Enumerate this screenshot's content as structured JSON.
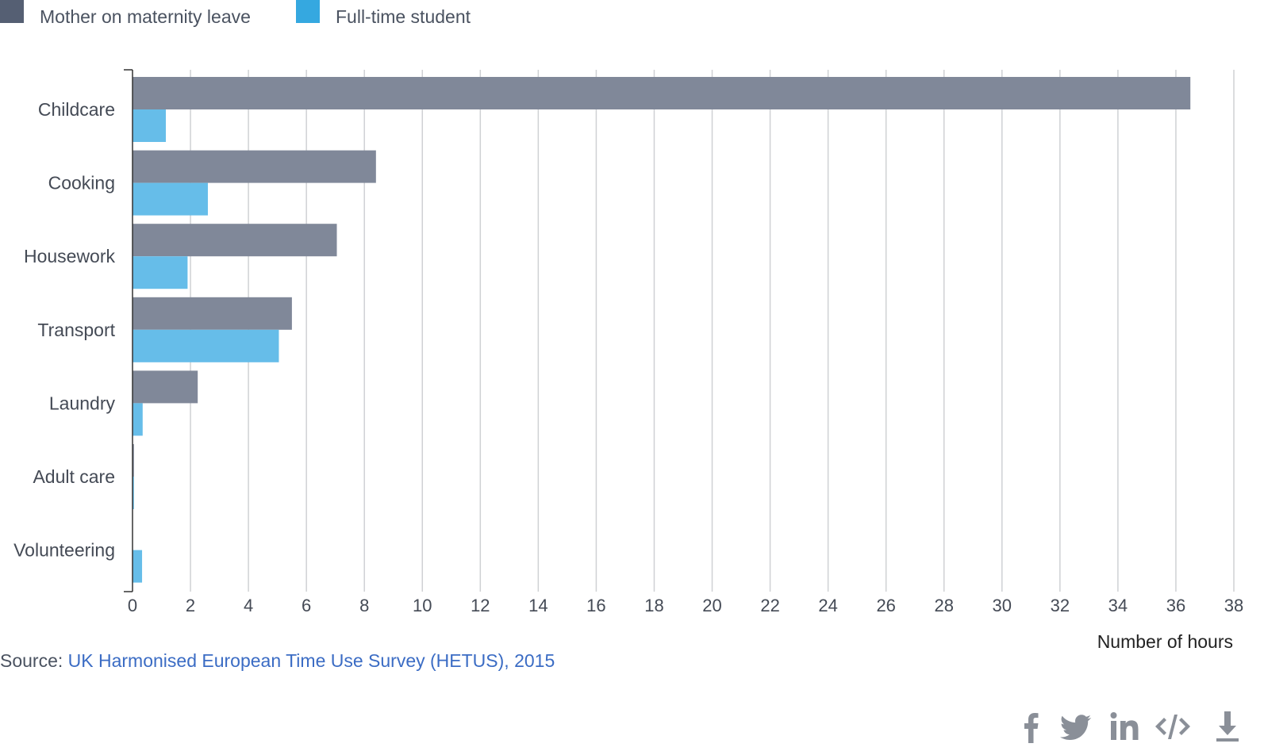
{
  "legend": [
    {
      "label": "Mother on maternity leave",
      "color": "#555f73"
    },
    {
      "label": "Full-time student",
      "color": "#35a8e0"
    }
  ],
  "chart_data": {
    "type": "bar",
    "orientation": "horizontal",
    "categories": [
      "Childcare",
      "Cooking",
      "Housework",
      "Transport",
      "Laundry",
      "Adult care",
      "Volunteering"
    ],
    "series": [
      {
        "name": "Mother on maternity leave",
        "color": "#808899",
        "values": [
          36.5,
          8.4,
          7.05,
          5.5,
          2.25,
          0.05,
          0
        ]
      },
      {
        "name": "Full-time student",
        "color": "#66bde9",
        "values": [
          1.15,
          2.6,
          1.9,
          5.05,
          0.35,
          0.05,
          0.33
        ]
      }
    ],
    "xlim": [
      0,
      38
    ],
    "xticks": [
      0,
      2,
      4,
      6,
      8,
      10,
      12,
      14,
      16,
      18,
      20,
      22,
      24,
      26,
      28,
      30,
      32,
      34,
      36,
      38
    ],
    "xlabel": "Number of hours",
    "ylabel": "",
    "title": "",
    "grid": true,
    "legend_position": "top-left"
  },
  "source": {
    "prefix": "Source: ",
    "link_text": "UK Harmonised European Time Use Survey (HETUS), 2015"
  },
  "share": [
    {
      "name": "facebook-icon",
      "color": "#8a8f98"
    },
    {
      "name": "twitter-icon",
      "color": "#8a8f98"
    },
    {
      "name": "linkedin-icon",
      "color": "#8a8f98"
    },
    {
      "name": "embed-icon",
      "color": "#8a8f98"
    },
    {
      "name": "download-icon",
      "color": "#8a8f98"
    }
  ]
}
